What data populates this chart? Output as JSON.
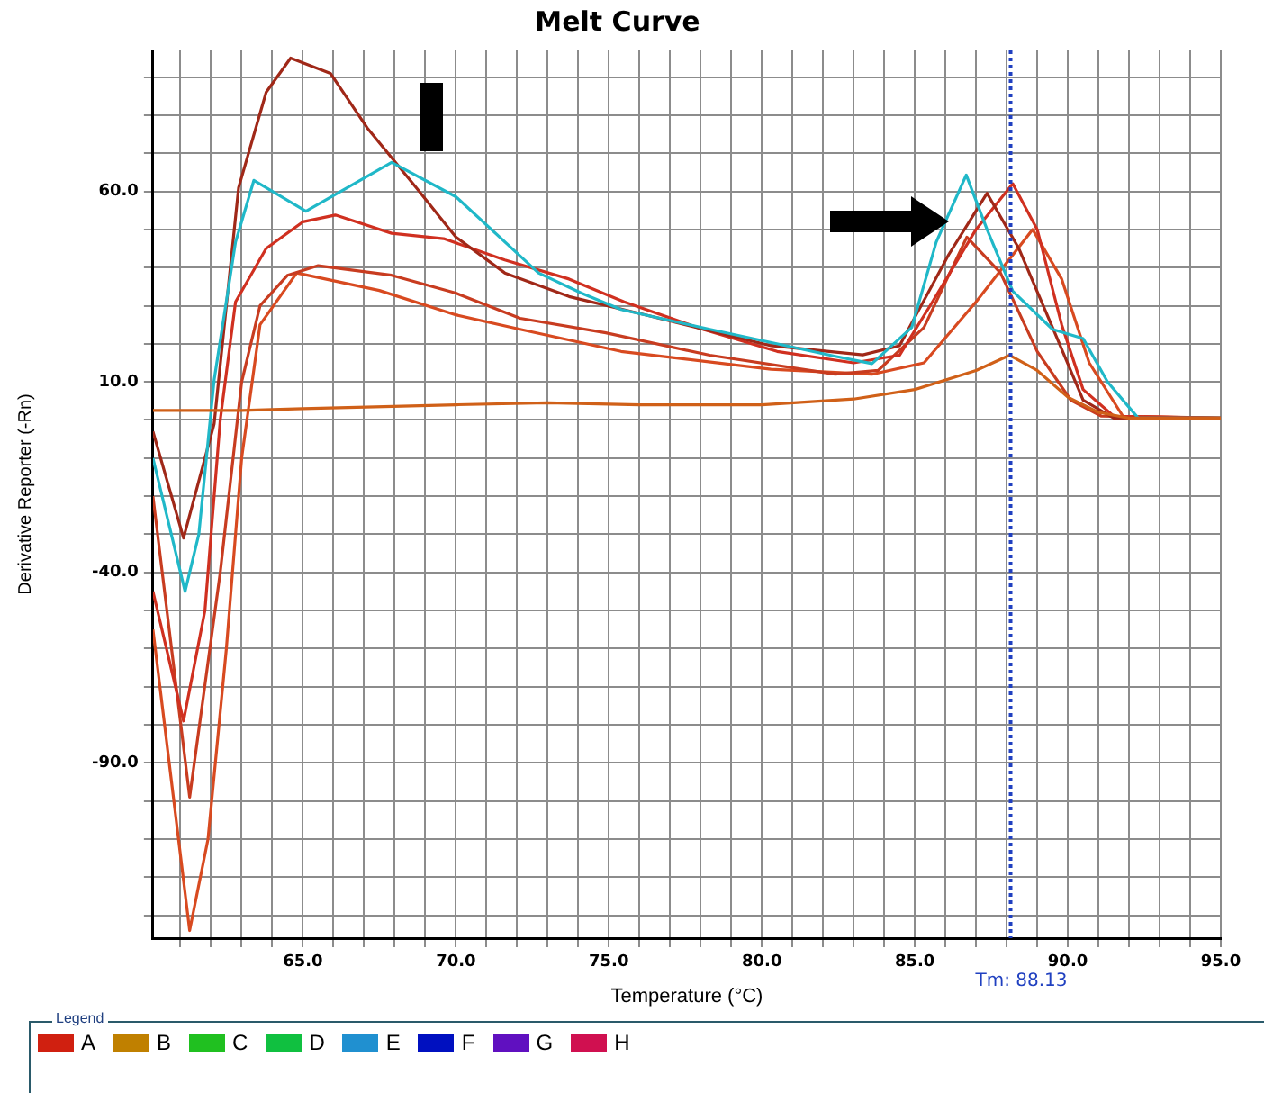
{
  "chart_data": {
    "type": "line",
    "title": "Melt Curve",
    "xlabel": "Temperature (°C)",
    "ylabel": "Derivative Reporter (-Rn)",
    "xlim": [
      60.1,
      95
    ],
    "ylim": [
      -136,
      97
    ],
    "xticks": [
      {
        "value": 61,
        "label": null
      },
      {
        "value": 62,
        "label": null
      },
      {
        "value": 63,
        "label": null
      },
      {
        "value": 64,
        "label": null
      },
      {
        "value": 65,
        "label": "65.0"
      },
      {
        "value": 66,
        "label": null
      },
      {
        "value": 67,
        "label": null
      },
      {
        "value": 68,
        "label": null
      },
      {
        "value": 69,
        "label": null
      },
      {
        "value": 70,
        "label": "70.0"
      },
      {
        "value": 71,
        "label": null
      },
      {
        "value": 72,
        "label": null
      },
      {
        "value": 73,
        "label": null
      },
      {
        "value": 74,
        "label": null
      },
      {
        "value": 75,
        "label": "75.0"
      },
      {
        "value": 76,
        "label": null
      },
      {
        "value": 77,
        "label": null
      },
      {
        "value": 78,
        "label": null
      },
      {
        "value": 79,
        "label": null
      },
      {
        "value": 80,
        "label": "80.0"
      },
      {
        "value": 81,
        "label": null
      },
      {
        "value": 82,
        "label": null
      },
      {
        "value": 83,
        "label": null
      },
      {
        "value": 84,
        "label": null
      },
      {
        "value": 85,
        "label": "85.0"
      },
      {
        "value": 86,
        "label": null
      },
      {
        "value": 87,
        "label": null
      },
      {
        "value": 88,
        "label": null
      },
      {
        "value": 89,
        "label": null
      },
      {
        "value": 90,
        "label": "90.0"
      },
      {
        "value": 91,
        "label": null
      },
      {
        "value": 92,
        "label": null
      },
      {
        "value": 93,
        "label": null
      },
      {
        "value": 94,
        "label": null
      },
      {
        "value": 95,
        "label": "95.0"
      }
    ],
    "yticks": [
      {
        "value": -130,
        "label": null
      },
      {
        "value": -120,
        "label": null
      },
      {
        "value": -110,
        "label": null
      },
      {
        "value": -100,
        "label": null
      },
      {
        "value": -90,
        "label": "-90.0"
      },
      {
        "value": -80,
        "label": null
      },
      {
        "value": -70,
        "label": null
      },
      {
        "value": -60,
        "label": null
      },
      {
        "value": -50,
        "label": null
      },
      {
        "value": -40,
        "label": "-40.0"
      },
      {
        "value": -30,
        "label": null
      },
      {
        "value": -20,
        "label": null
      },
      {
        "value": -10,
        "label": null
      },
      {
        "value": 0,
        "label": null
      },
      {
        "value": 10,
        "label": "10.0"
      },
      {
        "value": 20,
        "label": null
      },
      {
        "value": 30,
        "label": null
      },
      {
        "value": 40,
        "label": null
      },
      {
        "value": 50,
        "label": null
      },
      {
        "value": 60,
        "label": "60.0"
      },
      {
        "value": 70,
        "label": null
      },
      {
        "value": 80,
        "label": null
      },
      {
        "value": 90,
        "label": null
      }
    ],
    "grid": true,
    "ref_lines": [
      {
        "axis": "x",
        "value": 88.13,
        "label": "Tm: 88.13",
        "color": "#2040c0",
        "line_style": "dotted"
      }
    ],
    "annotations": [
      "Legend",
      "A",
      "B",
      "C",
      "D",
      "E",
      "F",
      "G",
      "H"
    ],
    "series": [
      {
        "color": "#d06018",
        "x": [
          60.1,
          63,
          65,
          70,
          73,
          76,
          80,
          83,
          85,
          87,
          88.1,
          89,
          90,
          91,
          92,
          95
        ],
        "values": [
          2.5,
          2.5,
          3,
          4,
          4.5,
          4,
          4,
          5.5,
          8,
          13,
          17,
          13,
          6,
          2,
          0.5,
          0.5
        ]
      },
      {
        "color": "#20b8c8",
        "x": [
          60.1,
          61.15,
          61.6,
          62.1,
          62.8,
          63.4,
          65.1,
          67.9,
          70,
          72.7,
          74.1,
          75.4,
          78.3,
          82.4,
          83.6,
          84.9,
          85.7,
          86.68,
          87.36,
          88.2,
          89.5,
          90.5,
          91.3,
          92.3,
          95
        ],
        "values": [
          -10,
          -45,
          -30,
          10.5,
          46.7,
          62.9,
          54.8,
          67.6,
          58.6,
          38.6,
          33.3,
          29,
          23.8,
          16.7,
          14.8,
          24.3,
          46.7,
          64.3,
          50,
          33.8,
          23.8,
          21.4,
          10,
          0.5,
          0.5
        ]
      },
      {
        "color": "#a02818",
        "x": [
          60.1,
          61.1,
          62.1,
          62.9,
          63.8,
          64.6,
          65.9,
          67.1,
          68.7,
          70,
          71.6,
          73.7,
          76.2,
          80.3,
          83.3,
          84.5,
          86.1,
          87.36,
          88.4,
          89.5,
          90.5,
          91.5,
          95
        ],
        "values": [
          -3,
          -31,
          -1,
          61,
          86,
          95,
          91,
          76.7,
          61,
          48,
          38.6,
          32.4,
          27.6,
          19.5,
          17.1,
          19.5,
          43.3,
          59.5,
          45,
          24.3,
          5.2,
          0.5,
          0.5
        ]
      },
      {
        "color": "#d03020",
        "x": [
          60.1,
          61.1,
          61.8,
          62.3,
          62.8,
          63.8,
          65,
          66.06,
          67.9,
          69.6,
          71.6,
          73.7,
          75.5,
          78,
          80.5,
          83,
          84.5,
          85.5,
          87,
          88.2,
          89,
          89.8,
          90.5,
          91.5,
          95
        ],
        "values": [
          -45,
          -79,
          -50,
          0,
          31,
          45,
          52,
          53.8,
          49,
          47.6,
          42,
          37,
          31,
          24,
          18,
          15,
          17,
          30,
          50,
          62,
          50,
          25,
          8,
          1,
          0.5
        ]
      },
      {
        "color": "#c83c20",
        "x": [
          60.1,
          61.3,
          62.3,
          63,
          63.6,
          64.5,
          65.5,
          67.9,
          70,
          72.1,
          74.9,
          78.3,
          82.4,
          83.8,
          85.3,
          86.7,
          87.8,
          89,
          90.1,
          91.1,
          95
        ],
        "values": [
          -20,
          -99,
          -40,
          10,
          30,
          38,
          40.5,
          38,
          33.3,
          26.7,
          22.9,
          17,
          12,
          13,
          24.3,
          48,
          38.6,
          18,
          5.2,
          1,
          0.5
        ]
      },
      {
        "color": "#d84a20",
        "x": [
          60.1,
          61.3,
          61.9,
          62.5,
          63,
          63.6,
          64.8,
          67.5,
          70,
          72.1,
          75.4,
          80.3,
          83.6,
          85.3,
          87,
          88.85,
          89.8,
          90.7,
          91.8,
          95
        ],
        "values": [
          -55,
          -134,
          -110,
          -60,
          -10,
          25,
          38.6,
          34,
          27.6,
          23.8,
          18,
          13.3,
          12,
          15,
          31,
          50,
          37,
          15,
          1,
          0.5
        ]
      }
    ]
  }
}
